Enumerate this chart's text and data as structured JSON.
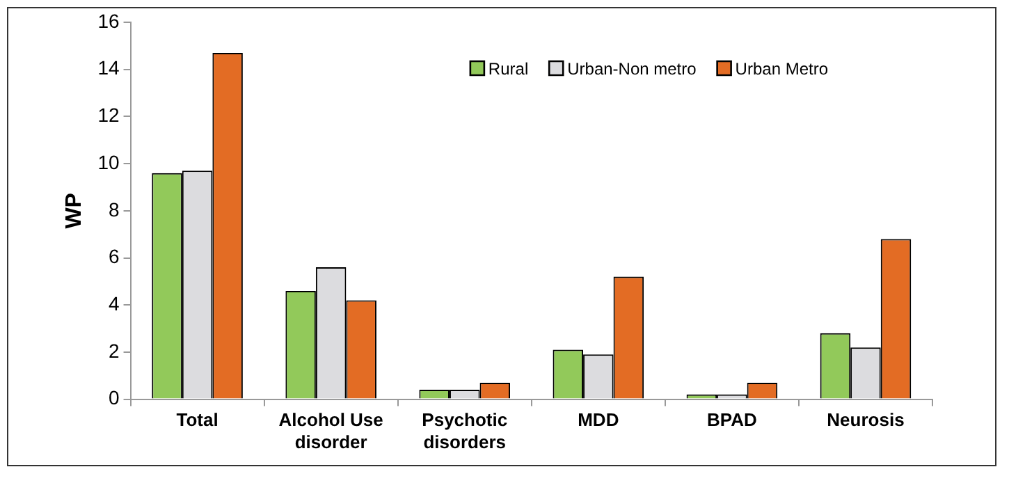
{
  "chart_data": {
    "type": "bar",
    "ylabel": "WP",
    "categories": [
      "Total",
      "Alcohol Use disorder",
      "Psychotic disorders",
      "MDD",
      "BPAD",
      "Neurosis"
    ],
    "series": [
      {
        "name": "Rural",
        "color": "#92c95a",
        "values": [
          9.6,
          4.6,
          0.4,
          2.1,
          0.2,
          2.8
        ]
      },
      {
        "name": "Urban-Non metro",
        "color": "#dcdcdf",
        "values": [
          9.7,
          5.6,
          0.4,
          1.9,
          0.2,
          2.2
        ]
      },
      {
        "name": "Urban Metro",
        "color": "#e36c24",
        "values": [
          14.7,
          4.2,
          0.7,
          5.2,
          0.7,
          6.8
        ]
      }
    ],
    "ylim": [
      0,
      16
    ],
    "yticks": [
      0,
      2,
      4,
      6,
      8,
      10,
      12,
      14,
      16
    ],
    "grid": false,
    "legend": "top right"
  }
}
